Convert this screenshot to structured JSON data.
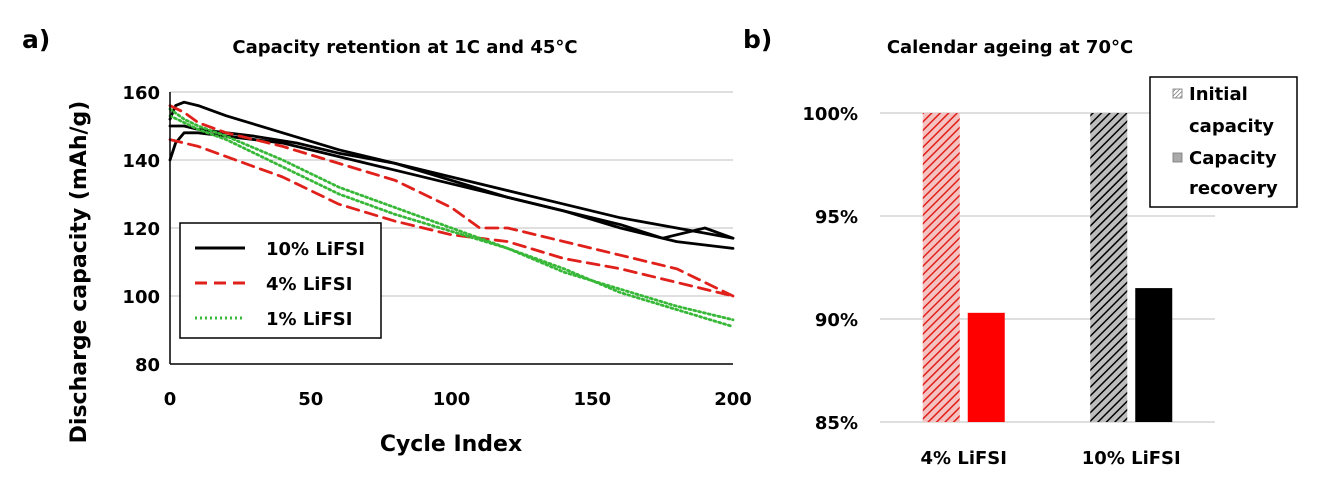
{
  "panel_a": {
    "label": "a)",
    "chart_data": {
      "type": "line",
      "title": "Capacity retention at 1C and 45°C",
      "xlabel": "Cycle Index",
      "ylabel": "Discharge capacity (mAh/g)",
      "xlim": [
        0,
        200
      ],
      "ylim": [
        80,
        160
      ],
      "x_ticks": [
        0,
        50,
        100,
        150,
        200
      ],
      "y_ticks": [
        80,
        100,
        120,
        140,
        160
      ],
      "grid": "horizontal",
      "legend_position": "bottom-left",
      "series": [
        {
          "name": "10% LiFSI",
          "color": "#000000",
          "style": "solid",
          "x": [
            0,
            2,
            5,
            10,
            20,
            40,
            60,
            80,
            100,
            120,
            140,
            160,
            180,
            200
          ],
          "y": [
            152,
            156,
            157,
            156,
            153,
            148,
            143,
            139,
            135,
            131,
            127,
            123,
            120,
            117
          ]
        },
        {
          "name": "10% LiFSI",
          "color": "#000000",
          "style": "solid",
          "x": [
            0,
            2,
            5,
            10,
            20,
            40,
            60,
            80,
            100,
            120,
            140,
            160,
            180,
            200
          ],
          "y": [
            140,
            145,
            148,
            148,
            147,
            145,
            141,
            137,
            133,
            129,
            125,
            120,
            116,
            114
          ]
        },
        {
          "name": "10% LiFSI",
          "color": "#000000",
          "style": "solid",
          "x": [
            0,
            5,
            10,
            20,
            30,
            45,
            60,
            80,
            100,
            120,
            140,
            160,
            175,
            190,
            200
          ],
          "y": [
            150,
            150,
            149,
            148,
            147,
            145,
            142,
            139,
            134,
            129,
            125,
            121,
            117,
            120,
            117
          ]
        },
        {
          "name": "4% LiFSI",
          "color": "#e0201b",
          "style": "dashed",
          "x": [
            0,
            5,
            10,
            20,
            40,
            60,
            80,
            100,
            110,
            120,
            140,
            160,
            180,
            200
          ],
          "y": [
            156,
            154,
            151,
            148,
            144,
            139,
            134,
            126,
            120,
            120,
            116,
            112,
            108,
            100
          ]
        },
        {
          "name": "4% LiFSI",
          "color": "#e0201b",
          "style": "dashed",
          "x": [
            0,
            5,
            10,
            20,
            40,
            60,
            80,
            100,
            120,
            140,
            160,
            180,
            200
          ],
          "y": [
            146,
            145,
            144,
            141,
            135,
            127,
            122,
            118,
            116,
            111,
            108,
            104,
            100
          ]
        },
        {
          "name": "1% LiFSI",
          "color": "#38b838",
          "style": "dotted",
          "x": [
            0,
            5,
            10,
            20,
            40,
            60,
            80,
            100,
            120,
            140,
            160,
            180,
            200
          ],
          "y": [
            155,
            152,
            150,
            147,
            140,
            132,
            126,
            120,
            114,
            108,
            101,
            96,
            91
          ]
        },
        {
          "name": "1% LiFSI",
          "color": "#38b838",
          "style": "dotted",
          "x": [
            0,
            5,
            10,
            20,
            40,
            60,
            80,
            100,
            120,
            140,
            160,
            180,
            200
          ],
          "y": [
            153,
            151,
            149,
            146,
            138,
            130,
            124,
            119,
            114,
            107,
            102,
            97,
            93
          ]
        }
      ],
      "legend": [
        {
          "name": "10% LiFSI",
          "color": "#000000",
          "style": "solid"
        },
        {
          "name": "4% LiFSI",
          "color": "#e0201b",
          "style": "dashed"
        },
        {
          "name": "1% LiFSI",
          "color": "#38b838",
          "style": "dotted"
        }
      ]
    }
  },
  "panel_b": {
    "label": "b)",
    "chart_data": {
      "type": "bar",
      "title": "Calendar ageing at 70°C",
      "categories": [
        "4% LiFSI",
        "10% LiFSI"
      ],
      "ylim": [
        0.85,
        1.0
      ],
      "y_ticks": [
        0.85,
        0.9,
        0.95,
        1.0
      ],
      "y_tick_labels": [
        "85%",
        "90%",
        "95%",
        "100%"
      ],
      "grid": "horizontal",
      "legend_position": "top-right",
      "series": [
        {
          "name": "Initial capacity",
          "pattern": "hatched",
          "colors": [
            "#e0201b",
            "#000000"
          ],
          "values": [
            1.0,
            1.0
          ]
        },
        {
          "name": "Capacity recovery",
          "pattern": "solid",
          "colors": [
            "#ff0000",
            "#000000"
          ],
          "values": [
            0.903,
            0.915
          ]
        }
      ],
      "legend": [
        {
          "line1": "Initial",
          "line2": "capacity",
          "pattern": "hatched"
        },
        {
          "line1": "Capacity",
          "line2": "recovery",
          "pattern": "solid"
        }
      ]
    }
  }
}
